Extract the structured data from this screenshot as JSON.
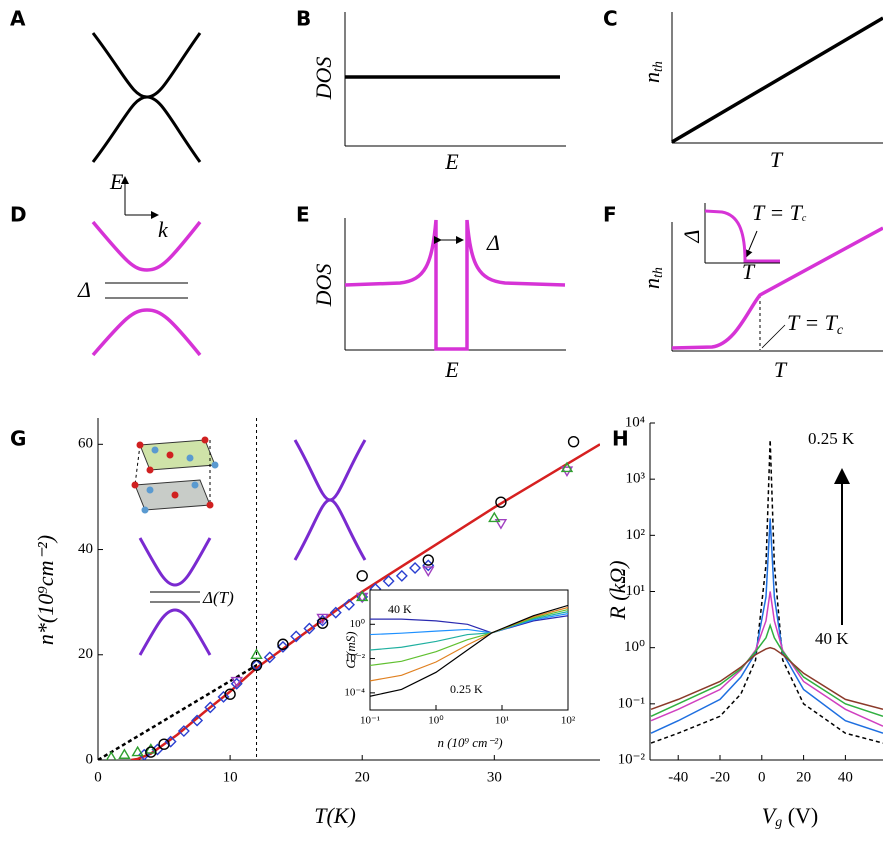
{
  "panels": {
    "labels": [
      "A",
      "B",
      "C",
      "D",
      "E",
      "F",
      "G",
      "H"
    ],
    "B": {
      "ylabel": "DOS",
      "xlabel": "E"
    },
    "C": {
      "ylabel": {
        "main": "n",
        "sub": "th"
      },
      "xlabel": "T"
    },
    "D": {
      "ylabel": "E",
      "xlabel": "k",
      "gap": "Δ"
    },
    "E": {
      "ylabel": "DOS",
      "xlabel": "E",
      "gap": "Δ"
    },
    "F": {
      "ylabel": {
        "main": "n",
        "sub": "th"
      },
      "xlabel": "T",
      "note": {
        "main": "T = T",
        "sub": "c"
      },
      "inset": {
        "ylabel": "Δ",
        "xlabel": "T",
        "note": {
          "main": "T = T",
          "sub": "c"
        }
      }
    }
  },
  "chart_data": [
    {
      "type": "scatter",
      "xlabel": "T(K)",
      "ylabel": "n*(10⁹cm⁻²)",
      "xlim": [
        0,
        38
      ],
      "xticks": [
        0,
        10,
        20,
        30
      ],
      "ylim": [
        0,
        65
      ],
      "yticks": [
        0,
        20,
        40,
        60
      ],
      "vline": 12,
      "annotations": [
        "Δ(T)"
      ],
      "series": [
        {
          "x": [
            0,
            12
          ],
          "values": [
            0,
            18
          ],
          "line": true,
          "dash": true,
          "color": "#000000"
        },
        {
          "x": [
            2.5,
            3,
            4,
            5,
            6,
            8,
            10,
            12,
            20,
            30,
            38
          ],
          "values": [
            0,
            0.2,
            1.2,
            3,
            4.8,
            9,
            13,
            17.5,
            32,
            48,
            60
          ],
          "line": true,
          "color": "#d62020"
        },
        {
          "x": [
            3.5,
            4.5,
            5.5,
            6.5,
            7.5,
            8.5,
            9.5,
            10.5,
            12,
            13,
            14,
            15,
            16,
            17,
            18,
            19,
            20,
            21,
            22,
            23,
            24,
            25
          ],
          "values": [
            1,
            2,
            3.5,
            5.5,
            7.5,
            10,
            12,
            14.5,
            18,
            19.5,
            21.5,
            23.5,
            25,
            26.5,
            28,
            29.5,
            31,
            32.5,
            34,
            35,
            36.5,
            37
          ],
          "marker": "diamond",
          "color": "#2a3fd0"
        },
        {
          "x": [
            10.5,
            17,
            20,
            25,
            30.5,
            35.5
          ],
          "values": [
            15,
            27,
            31,
            36,
            45,
            55
          ],
          "marker": "triangle-down",
          "color": "#a040c0"
        },
        {
          "x": [
            1,
            2,
            3,
            4,
            12,
            20,
            30,
            35.5
          ],
          "values": [
            0.5,
            1,
            1.5,
            2,
            20,
            31,
            46,
            55.5
          ],
          "marker": "triangle-up",
          "color": "#30a030"
        },
        {
          "x": [
            4,
            5,
            10,
            12,
            14,
            17,
            20,
            25,
            30.5,
            36
          ],
          "values": [
            1.5,
            3,
            12.5,
            18,
            22,
            26,
            35,
            38,
            49,
            60.5
          ],
          "marker": "circle",
          "color": "#000000"
        }
      ]
    },
    {
      "type": "line",
      "xlabel": "n (10⁹ cm⁻²)",
      "ylabel": "G (mS)",
      "xscale": "log",
      "yscale": "log",
      "xlim": [
        0.1,
        100
      ],
      "xticks": [
        {
          "value": 0.1,
          "label": "10⁻¹"
        },
        {
          "value": 1,
          "label": "10⁰"
        },
        {
          "value": 10,
          "label": "10¹"
        },
        {
          "value": 100,
          "label": "10²"
        }
      ],
      "ylim": [
        1e-05,
        100
      ],
      "yticks": [
        {
          "value": 0.0001,
          "label": "10⁻⁴"
        },
        {
          "value": 0.01,
          "label": "10⁻²"
        },
        {
          "value": 1,
          "label": "10⁰"
        }
      ],
      "annotations": [
        "40 K",
        "0.25 K"
      ],
      "x": [
        0.1,
        0.3,
        1,
        3,
        7,
        30,
        100
      ],
      "series": [
        {
          "values": [
            2.0,
            2.0,
            1.58,
            1.0,
            0.316,
            1.58,
            3.16
          ],
          "line": true,
          "color": "#2a2ab0"
        },
        {
          "values": [
            0.251,
            0.302,
            0.398,
            0.501,
            0.316,
            1.82,
            4.17
          ],
          "line": true,
          "color": "#1e90ff"
        },
        {
          "values": [
            0.0316,
            0.0457,
            0.1,
            0.251,
            0.316,
            2.09,
            5.5
          ],
          "line": true,
          "color": "#20b0a0"
        },
        {
          "values": [
            0.00398,
            0.00692,
            0.0251,
            0.126,
            0.316,
            2.4,
            7.24
          ],
          "line": true,
          "color": "#60c030"
        },
        {
          "values": [
            0.000501,
            0.00105,
            0.00631,
            0.0631,
            0.316,
            2.75,
            9.55
          ],
          "line": true,
          "color": "#e08020"
        },
        {
          "values": [
            6.31e-05,
            0.000158,
            0.00158,
            0.0316,
            0.316,
            3.16,
            12.6
          ],
          "line": true,
          "color": "#000000"
        }
      ]
    },
    {
      "type": "line",
      "ylabel": "R (kΩ)",
      "xlabel": {
        "main": "V",
        "sub": "g",
        "unit": " (V)"
      },
      "xlim": [
        -53.5,
        58
      ],
      "xticks": [
        -40,
        -20,
        0,
        20,
        40
      ],
      "ylim": [
        0.01,
        10000
      ],
      "yscale": "log",
      "yticks": [
        {
          "value": 0.01,
          "label": "10⁻²"
        },
        {
          "value": 0.1,
          "label": "10⁻¹"
        },
        {
          "value": 1,
          "label": "10⁰"
        },
        {
          "value": 10,
          "label": "10¹"
        },
        {
          "value": 100,
          "label": "10²"
        },
        {
          "value": 1000,
          "label": "10³"
        },
        {
          "value": 10000,
          "label": "10⁴"
        }
      ],
      "annotations": [
        "0.25 K",
        "40 K"
      ],
      "x": [
        -53,
        -40,
        -20,
        -10,
        -3,
        2,
        4,
        6,
        10,
        20,
        40,
        58
      ],
      "series": [
        {
          "values": [
            0.02,
            0.03,
            0.06,
            0.15,
            0.6,
            30,
            5000,
            30,
            0.6,
            0.1,
            0.03,
            0.02
          ],
          "line": true,
          "dash": true,
          "color": "#000000"
        },
        {
          "values": [
            0.03,
            0.05,
            0.12,
            0.3,
            0.8,
            8,
            200,
            8,
            0.8,
            0.18,
            0.05,
            0.03
          ],
          "line": true,
          "color": "#1e6fe0"
        },
        {
          "values": [
            0.05,
            0.08,
            0.18,
            0.4,
            0.9,
            3,
            10,
            3,
            0.9,
            0.25,
            0.08,
            0.04
          ],
          "line": true,
          "color": "#d040c0"
        },
        {
          "values": [
            0.06,
            0.1,
            0.22,
            0.42,
            0.85,
            1.5,
            2.5,
            1.5,
            0.85,
            0.3,
            0.1,
            0.06
          ],
          "line": true,
          "color": "#30b040"
        },
        {
          "values": [
            0.08,
            0.12,
            0.25,
            0.45,
            0.75,
            0.95,
            1.0,
            0.95,
            0.75,
            0.35,
            0.12,
            0.08
          ],
          "line": true,
          "color": "#8b3a2a"
        }
      ]
    }
  ]
}
